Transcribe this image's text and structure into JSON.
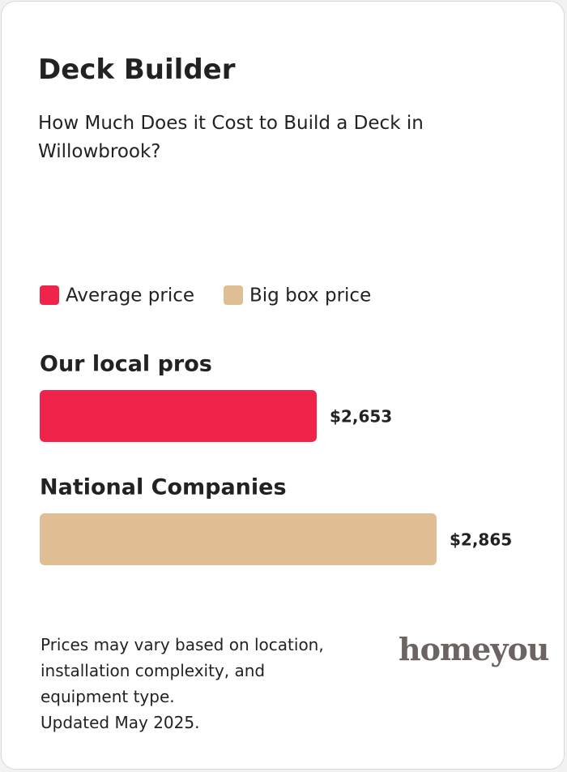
{
  "chart_data": {
    "type": "bar",
    "orientation": "horizontal",
    "title": "Deck Builder",
    "subtitle": "How Much Does it Cost to Build a Deck in Willowbrook?",
    "categories": [
      "Our local pros",
      "National Companies"
    ],
    "series": [
      {
        "name": "Average price",
        "color": "#f0244a",
        "values": [
          2653,
          null
        ],
        "value_labels": [
          "$2,653",
          null
        ]
      },
      {
        "name": "Big box price",
        "color": "#dfbf93",
        "values": [
          null,
          2865
        ],
        "value_labels": [
          null,
          "$2,865"
        ]
      }
    ],
    "xlim": [
      2163,
      2865
    ],
    "legend": "top-left"
  },
  "footer": {
    "notes": [
      "Prices may vary based on location,",
      "installation complexity, and",
      "equipment type.",
      "Updated May 2025."
    ],
    "logo": "homeyou"
  }
}
